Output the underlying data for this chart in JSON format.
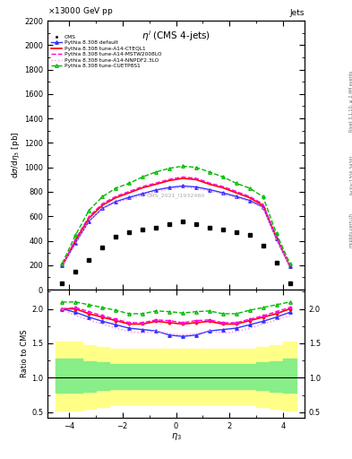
{
  "eta_centers": [
    -4.25,
    -3.75,
    -3.25,
    -2.75,
    -2.25,
    -1.75,
    -1.25,
    -0.75,
    -0.25,
    0.25,
    0.75,
    1.25,
    1.75,
    2.25,
    2.75,
    3.25,
    3.75,
    4.25
  ],
  "cms_data": [
    50,
    145,
    240,
    345,
    430,
    470,
    490,
    505,
    535,
    555,
    535,
    505,
    490,
    470,
    445,
    360,
    220,
    55
  ],
  "default_data": [
    195,
    385,
    560,
    665,
    720,
    755,
    785,
    815,
    835,
    848,
    840,
    818,
    792,
    762,
    730,
    675,
    415,
    192
  ],
  "cteql1_data": [
    195,
    405,
    585,
    690,
    752,
    792,
    833,
    862,
    892,
    910,
    900,
    862,
    833,
    792,
    752,
    688,
    430,
    192
  ],
  "mstw_data": [
    195,
    415,
    598,
    703,
    762,
    803,
    843,
    872,
    902,
    921,
    911,
    872,
    843,
    803,
    762,
    700,
    435,
    192
  ],
  "nnpdf_data": [
    195,
    378,
    558,
    662,
    712,
    742,
    772,
    802,
    822,
    838,
    828,
    808,
    782,
    752,
    720,
    670,
    412,
    192
  ],
  "cuetp_data": [
    215,
    448,
    648,
    760,
    830,
    870,
    922,
    962,
    992,
    1010,
    1000,
    962,
    922,
    870,
    830,
    760,
    460,
    215
  ],
  "ratio_default": [
    2.0,
    1.95,
    1.88,
    1.82,
    1.77,
    1.72,
    1.7,
    1.68,
    1.62,
    1.6,
    1.62,
    1.68,
    1.7,
    1.72,
    1.77,
    1.82,
    1.88,
    1.95
  ],
  "ratio_cteql1": [
    2.0,
    2.0,
    1.93,
    1.88,
    1.83,
    1.78,
    1.78,
    1.82,
    1.8,
    1.78,
    1.8,
    1.82,
    1.78,
    1.78,
    1.83,
    1.88,
    1.93,
    2.0
  ],
  "ratio_mstw": [
    2.0,
    2.02,
    1.96,
    1.9,
    1.85,
    1.8,
    1.8,
    1.84,
    1.83,
    1.8,
    1.83,
    1.84,
    1.8,
    1.8,
    1.85,
    1.9,
    1.96,
    2.02
  ],
  "ratio_nnpdf": [
    2.0,
    1.9,
    1.84,
    1.78,
    1.72,
    1.67,
    1.65,
    1.68,
    1.64,
    1.62,
    1.64,
    1.68,
    1.65,
    1.67,
    1.72,
    1.78,
    1.84,
    1.9
  ],
  "ratio_cuetp": [
    2.1,
    2.1,
    2.06,
    2.02,
    1.98,
    1.93,
    1.93,
    1.97,
    1.96,
    1.94,
    1.96,
    1.97,
    1.93,
    1.93,
    1.98,
    2.02,
    2.06,
    2.1
  ],
  "yellow_band_lo_x": [
    -4.5,
    -4.0,
    -3.5,
    -3.0,
    -2.5,
    -2.0,
    -1.5,
    -1.0,
    -0.5,
    0.0,
    0.5,
    1.0,
    1.5,
    2.0,
    2.5,
    3.0,
    3.5,
    4.0,
    4.5
  ],
  "yellow_band_lo_y": [
    0.52,
    0.52,
    0.55,
    0.58,
    0.62,
    0.62,
    0.62,
    0.62,
    0.62,
    0.62,
    0.62,
    0.62,
    0.62,
    0.62,
    0.62,
    0.58,
    0.55,
    0.52,
    0.52
  ],
  "yellow_band_hi_y": [
    1.52,
    1.52,
    1.48,
    1.45,
    1.42,
    1.42,
    1.42,
    1.42,
    1.42,
    1.42,
    1.42,
    1.42,
    1.42,
    1.42,
    1.42,
    1.45,
    1.48,
    1.52,
    1.52
  ],
  "green_band_lo_y": [
    0.78,
    0.78,
    0.8,
    0.82,
    0.83,
    0.83,
    0.83,
    0.83,
    0.83,
    0.83,
    0.83,
    0.83,
    0.83,
    0.83,
    0.83,
    0.82,
    0.8,
    0.78,
    0.78
  ],
  "green_band_hi_y": [
    1.28,
    1.28,
    1.24,
    1.22,
    1.2,
    1.2,
    1.2,
    1.2,
    1.2,
    1.2,
    1.2,
    1.2,
    1.2,
    1.2,
    1.2,
    1.22,
    1.24,
    1.28,
    1.28
  ],
  "ylim_main": [
    0,
    2200
  ],
  "ylim_ratio": [
    0.42,
    2.28
  ],
  "xlim": [
    -4.8,
    4.8
  ],
  "yticks_main": [
    0,
    200,
    400,
    600,
    800,
    1000,
    1200,
    1400,
    1600,
    1800,
    2000,
    2200
  ],
  "yticks_ratio": [
    0.5,
    1.0,
    1.5,
    2.0
  ],
  "xticks": [
    -4,
    -2,
    0,
    2,
    4
  ],
  "color_default": "#3333ff",
  "color_cteql1": "#ff0000",
  "color_mstw": "#ff00dd",
  "color_nnpdf": "#ff88ee",
  "color_cuetp": "#00bb00",
  "color_cms": "#000000",
  "color_yellow": "#ffff88",
  "color_green": "#88ee88",
  "label_default": "Pythia 8.308 default",
  "label_cteql1": "Pythia 8.308 tune-A14-CTEQL1",
  "label_mstw": "Pythia 8.308 tune-A14-MSTW2008LO",
  "label_nnpdf": "Pythia 8.308 tune-A14-NNPDF2.3LO",
  "label_cuetp": "Pythia 8.308 tune-CUETP8S1",
  "cms_watermark": "CMS_2021_I1932460"
}
